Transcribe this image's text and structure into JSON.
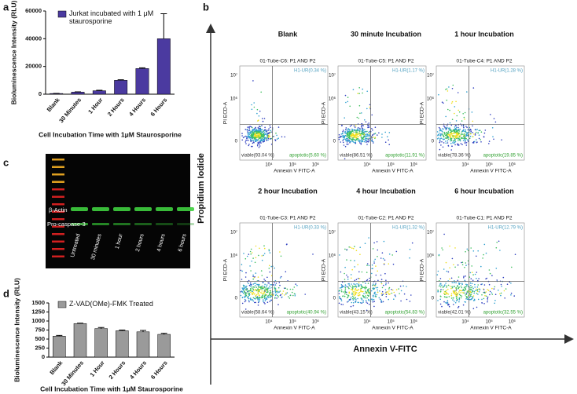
{
  "chart_data": [
    {
      "type": "bar",
      "panel": "a",
      "y_label": "Bioluminescence Intensity (RLU)",
      "x_label": "Cell Incubation Time with 1μM Staurosporine",
      "categories": [
        "Blank",
        "30 Minutes",
        "1 Hour",
        "2 Hours",
        "4 Hours",
        "6 Hours"
      ],
      "series": [
        {
          "name": "Jurkat incubated with 1 μM staurosporine",
          "color": "#4b3aa0",
          "values": [
            500,
            1500,
            2500,
            10000,
            18500,
            40000
          ],
          "errors": [
            100,
            200,
            300,
            400,
            500,
            18000
          ]
        }
      ],
      "ylim": [
        0,
        60000
      ],
      "yticks": [
        0,
        20000,
        40000,
        60000
      ]
    },
    {
      "type": "bar",
      "panel": "d",
      "y_label": "Bioluminescence Intensity (RLU)",
      "x_label": "Cell Incubation Time with 1μM Staurosporine",
      "categories": [
        "Blank",
        "30 Minutes",
        "1 Hour",
        "2 Hours",
        "4 Hours",
        "6 Hours"
      ],
      "series": [
        {
          "name": "Z-VAD(OMe)-FMK Treated",
          "color": "#9a9a9a",
          "values": [
            580,
            930,
            790,
            730,
            700,
            630
          ],
          "errors": [
            20,
            10,
            30,
            20,
            40,
            30
          ]
        }
      ],
      "ylim": [
        0,
        1500
      ],
      "yticks": [
        0,
        250,
        500,
        750,
        1000,
        1250,
        1500
      ]
    }
  ],
  "panel_b": {
    "letter": "b",
    "y_title": "Propidium Iodide",
    "x_title": "Annexin V-FITC",
    "axes": {
      "x_label": "Annexin V FITC-A",
      "y_label": "PI ECD-A",
      "x_ticks": [
        "10⁴",
        "10⁵",
        "10⁶"
      ],
      "y_ticks": [
        "10⁷",
        "10⁶",
        "0"
      ]
    },
    "plots": [
      {
        "title": "Blank",
        "tube": "01-Tube-C6: P1 AND P2",
        "ur": "H1-UR(0.34 %)",
        "viable": "viable(93.04 %)",
        "apoptotic": "apoptotic(5.60 %)"
      },
      {
        "title": "30 minute Incubation",
        "tube": "01-Tube-C5: P1 AND P2",
        "ur": "H1-UR(1.17 %)",
        "viable": "viable(86.51 %)",
        "apoptotic": "apoptotic(11.91 %)"
      },
      {
        "title": "1 hour Incubation",
        "tube": "01-Tube-C4: P1 AND P2",
        "ur": "H1-UR(1.28 %)",
        "viable": "viable(78.36 %)",
        "apoptotic": "apoptotic(19.85 %)"
      },
      {
        "title": "2 hour Incubation",
        "tube": "01-Tube-C3: P1 AND P2",
        "ur": "H1-UR(0.33 %)",
        "viable": "viable(58.64 %)",
        "apoptotic": "apoptotic(40.94 %)"
      },
      {
        "title": "4 hour Incubation",
        "tube": "01-Tube-C2: P1 AND P2",
        "ur": "H1-UR(1.32 %)",
        "viable": "viable(43.15 %)",
        "apoptotic": "apoptotic(54.83 %)"
      },
      {
        "title": "6 hour Incubation",
        "tube": "01-Tube-C1: P1 AND P2",
        "ur": "H1-UR(12.79 %)",
        "viable": "viable(42.01 %)",
        "apoptotic": "apoptotic(32.55 %)"
      }
    ]
  },
  "panel_c": {
    "letter": "c",
    "bands": [
      "β-Actin",
      "Pro-caspase-3"
    ],
    "lanes": [
      "Untreated",
      "30 minutes",
      "1 hour",
      "2 hours",
      "4 hours",
      "6 hours"
    ]
  }
}
